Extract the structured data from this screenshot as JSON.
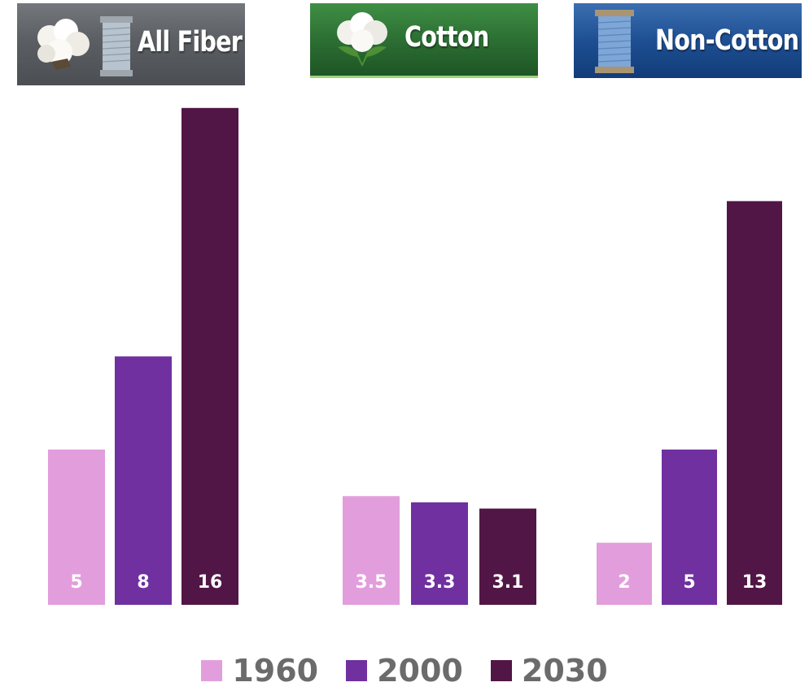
{
  "banners": [
    {
      "label": "All Fiber",
      "icon": "cotton-boll-and-spool-icon",
      "color": "#5b5f63"
    },
    {
      "label": "Cotton",
      "icon": "cotton-boll-icon",
      "color": "#2c6f33"
    },
    {
      "label": "Non-Cotton",
      "icon": "thread-spool-icon",
      "color": "#1e4f93"
    }
  ],
  "chart_data": {
    "type": "bar",
    "categories": [
      "All Fiber",
      "Cotton",
      "Non-Cotton"
    ],
    "series": [
      {
        "name": "1960",
        "values": [
          5,
          3.5,
          2
        ],
        "labels": [
          "5",
          "3.5",
          "2"
        ],
        "color": "#e29edc"
      },
      {
        "name": "2000",
        "values": [
          8,
          3.3,
          5
        ],
        "labels": [
          "8",
          "3.3",
          "5"
        ],
        "color": "#7030a0"
      },
      {
        "name": "2030",
        "values": [
          16,
          3.1,
          13
        ],
        "labels": [
          "16",
          "3.1",
          "13"
        ],
        "color": "#521646"
      }
    ],
    "ylim": [
      0,
      16
    ],
    "grid": false,
    "axes_visible": false,
    "legend_position": "bottom-center",
    "data_labels": "inside-bottom",
    "data_label_color": "#ffffff"
  }
}
